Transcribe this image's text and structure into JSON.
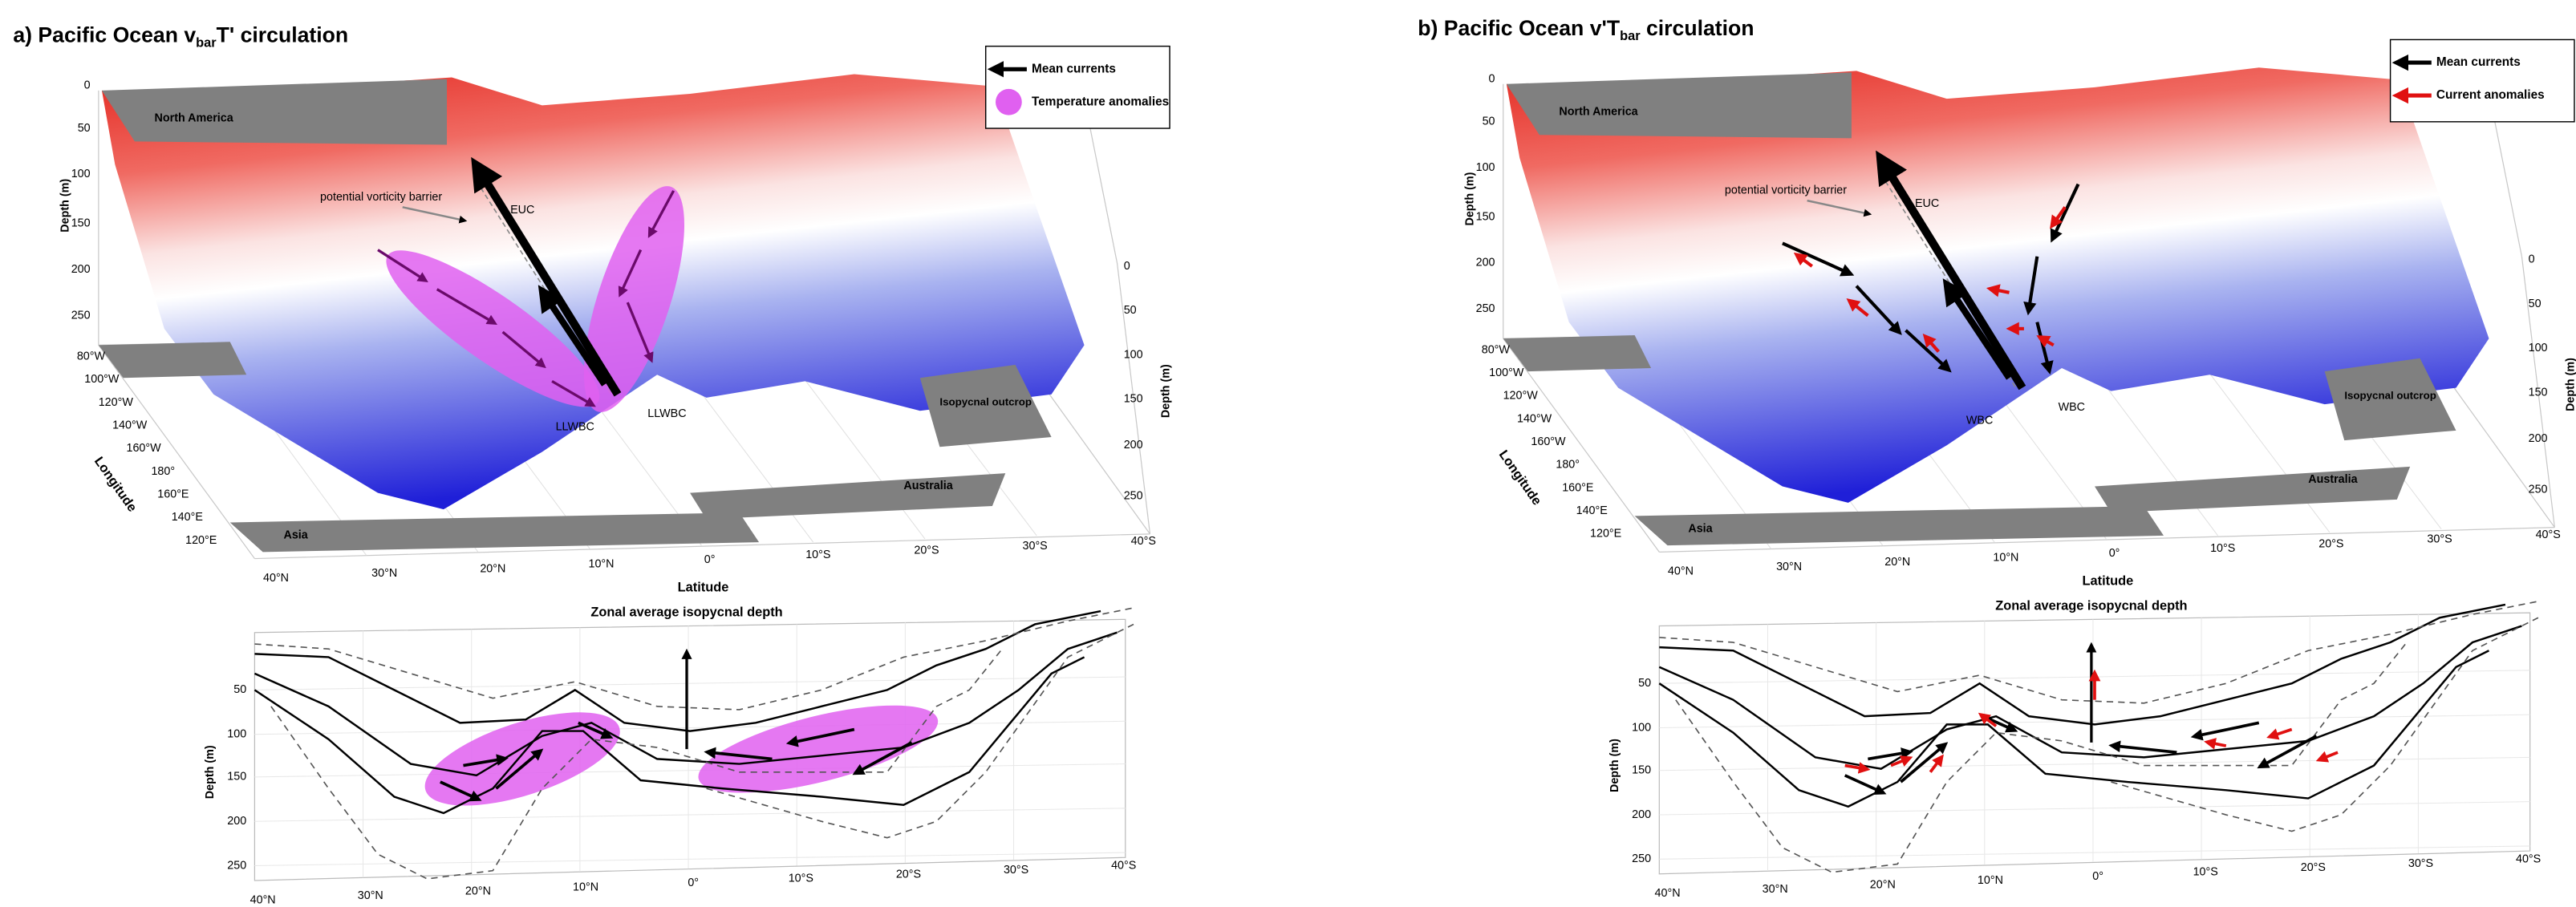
{
  "panels": [
    {
      "title": {
        "prefix": "a) Pacific Ocean v",
        "sub": "bar",
        "suffix": "T' circulation"
      },
      "legend": [
        "Mean currents",
        "Temperature anomalies"
      ],
      "labels": {
        "north_america": "North America",
        "asia": "Asia",
        "australia": "Australia",
        "outcrop": "Isopycnal outcrop",
        "barrier": "potential vorticity barrier",
        "euc": "EUC",
        "wbc_left": "LLWBC",
        "wbc_right": "LLWBC"
      },
      "depth_label": "Depth (m)",
      "depth_ticks": [
        "0",
        "50",
        "100",
        "150",
        "200",
        "250"
      ],
      "right_depth_ticks": [
        "0",
        "50",
        "100",
        "150",
        "200",
        "250"
      ],
      "longitude_label": "Longitude",
      "longitude_ticks": [
        "80°W",
        "100°W",
        "120°W",
        "140°W",
        "160°W",
        "180°",
        "160°E",
        "140°E",
        "120°E"
      ],
      "latitude_label": "Latitude",
      "latitude_ticks": [
        "40°N",
        "30°N",
        "20°N",
        "10°N",
        "0°",
        "10°S",
        "20°S",
        "30°S",
        "40°S"
      ],
      "bottom": {
        "title": "Zonal average isopycnal depth",
        "depth_label": "Depth (m)",
        "depth_ticks": [
          "50",
          "100",
          "150",
          "200",
          "250"
        ],
        "latitude_ticks": [
          "40°N",
          "30°N",
          "20°N",
          "10°N",
          "0°",
          "10°S",
          "20°S",
          "30°S",
          "40°S"
        ]
      }
    },
    {
      "title": {
        "prefix": "b) Pacific Ocean v'T",
        "sub": "bar",
        "suffix": " circulation"
      },
      "legend": [
        "Mean currents",
        "Current anomalies"
      ],
      "labels": {
        "north_america": "North America",
        "asia": "Asia",
        "australia": "Australia",
        "outcrop": "Isopycnal outcrop",
        "barrier": "potential vorticity barrier",
        "euc": "EUC",
        "wbc_left": "WBC",
        "wbc_right": "WBC"
      },
      "depth_label": "Depth (m)",
      "depth_ticks": [
        "0",
        "50",
        "100",
        "150",
        "200",
        "250"
      ],
      "right_depth_ticks": [
        "0",
        "50",
        "100",
        "150",
        "200",
        "250"
      ],
      "longitude_label": "Longitude",
      "longitude_ticks": [
        "80°W",
        "100°W",
        "120°W",
        "140°W",
        "160°W",
        "180°",
        "160°E",
        "140°E",
        "120°E"
      ],
      "latitude_label": "Latitude",
      "latitude_ticks": [
        "40°N",
        "30°N",
        "20°N",
        "10°N",
        "0°",
        "10°S",
        "20°S",
        "30°S",
        "40°S"
      ],
      "bottom": {
        "title": "Zonal average isopycnal depth",
        "depth_label": "Depth (m)",
        "depth_ticks": [
          "50",
          "100",
          "150",
          "200",
          "250"
        ],
        "latitude_ticks": [
          "40°N",
          "30°N",
          "20°N",
          "10°N",
          "0°",
          "10°S",
          "20°S",
          "30°S",
          "40°S"
        ]
      }
    }
  ]
}
